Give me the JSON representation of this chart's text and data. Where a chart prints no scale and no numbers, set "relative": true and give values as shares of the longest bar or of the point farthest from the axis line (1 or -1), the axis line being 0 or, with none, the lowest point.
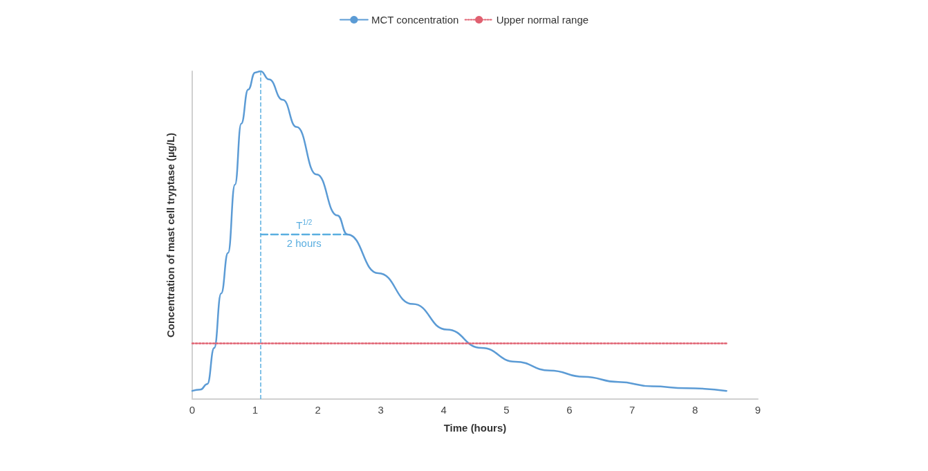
{
  "chart_data": {
    "type": "line",
    "relative": true,
    "xlabel": "Time (hours)",
    "ylabel": "Concentration of mast cell tryptase (µg/L)",
    "xlim": [
      0,
      9
    ],
    "xticks": [
      0,
      1,
      2,
      3,
      4,
      5,
      6,
      7,
      8,
      9
    ],
    "grid": false,
    "legend": "top",
    "marker": "none",
    "series": [
      {
        "name": "MCT concentration",
        "color": "#5b9bd5",
        "line_style": "solid",
        "x": [
          0,
          0.13,
          0.24,
          0.35,
          0.46,
          0.57,
          0.68,
          0.78,
          0.89,
          1.0,
          1.09,
          1.22,
          1.44,
          1.66,
          1.98,
          2.31,
          2.47,
          2.96,
          3.51,
          4.05,
          4.6,
          5.14,
          5.69,
          6.23,
          6.78,
          7.32,
          7.86,
          8.5
        ],
        "values": [
          0.025,
          0.029,
          0.046,
          0.156,
          0.322,
          0.446,
          0.654,
          0.84,
          0.944,
          0.996,
          1,
          0.975,
          0.913,
          0.83,
          0.685,
          0.56,
          0.502,
          0.384,
          0.29,
          0.212,
          0.156,
          0.114,
          0.087,
          0.068,
          0.052,
          0.039,
          0.033,
          0.025
        ]
      },
      {
        "name": "Upper normal range",
        "color": "#e06070",
        "line_style": "dotted",
        "x": [
          0,
          8.5
        ],
        "values": [
          0.17,
          0.17
        ]
      },
      {
        "color": "#5aaee0",
        "line_style": "dashed",
        "x": [
          1.09,
          2.47
        ],
        "values": [
          0.502,
          0.502
        ]
      }
    ],
    "ref_lines": [
      {
        "axis": "x",
        "value": 1.09,
        "color": "#5aaee0",
        "line_style": "dashed"
      }
    ],
    "annotations": [
      {
        "text": "T$^{1/2}$",
        "x": 1.78,
        "y": 0.502
      },
      {
        "text": "2 hours",
        "x": 1.78,
        "y": 0.502
      }
    ]
  }
}
